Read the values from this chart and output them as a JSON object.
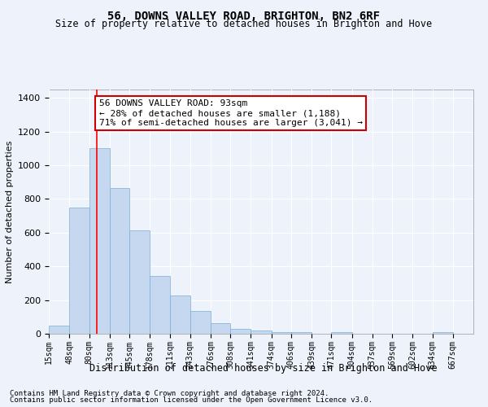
{
  "title": "56, DOWNS VALLEY ROAD, BRIGHTON, BN2 6RF",
  "subtitle": "Size of property relative to detached houses in Brighton and Hove",
  "xlabel": "Distribution of detached houses by size in Brighton and Hove",
  "ylabel": "Number of detached properties",
  "footer1": "Contains HM Land Registry data © Crown copyright and database right 2024.",
  "footer2": "Contains public sector information licensed under the Open Government Licence v3.0.",
  "annotation_line1": "56 DOWNS VALLEY ROAD: 93sqm",
  "annotation_line2": "← 28% of detached houses are smaller (1,188)",
  "annotation_line3": "71% of semi-detached houses are larger (3,041) →",
  "bar_color": "#c5d8ef",
  "bar_edge_color": "#7aafd4",
  "red_line_x": 93,
  "categories": [
    "15sqm",
    "48sqm",
    "80sqm",
    "113sqm",
    "145sqm",
    "178sqm",
    "211sqm",
    "243sqm",
    "276sqm",
    "308sqm",
    "341sqm",
    "374sqm",
    "406sqm",
    "439sqm",
    "471sqm",
    "504sqm",
    "537sqm",
    "569sqm",
    "602sqm",
    "634sqm",
    "667sqm"
  ],
  "bin_edges": [
    15,
    48,
    80,
    113,
    145,
    178,
    211,
    243,
    276,
    308,
    341,
    374,
    406,
    439,
    471,
    504,
    537,
    569,
    602,
    634,
    667,
    700
  ],
  "bar_heights": [
    50,
    750,
    1100,
    865,
    615,
    345,
    225,
    135,
    65,
    30,
    20,
    10,
    10,
    0,
    10,
    0,
    0,
    0,
    0,
    10,
    0
  ],
  "ylim": [
    0,
    1450
  ],
  "yticks": [
    0,
    200,
    400,
    600,
    800,
    1000,
    1200,
    1400
  ],
  "background_color": "#eef2fb",
  "grid_color": "#ffffff",
  "annotation_box_color": "#ffffff",
  "annotation_box_edge_color": "#cc0000",
  "title_fontsize": 10,
  "subtitle_fontsize": 8.5,
  "xlabel_fontsize": 8.5,
  "ylabel_fontsize": 8,
  "tick_fontsize": 7,
  "annotation_fontsize": 8,
  "footer_fontsize": 6.5
}
